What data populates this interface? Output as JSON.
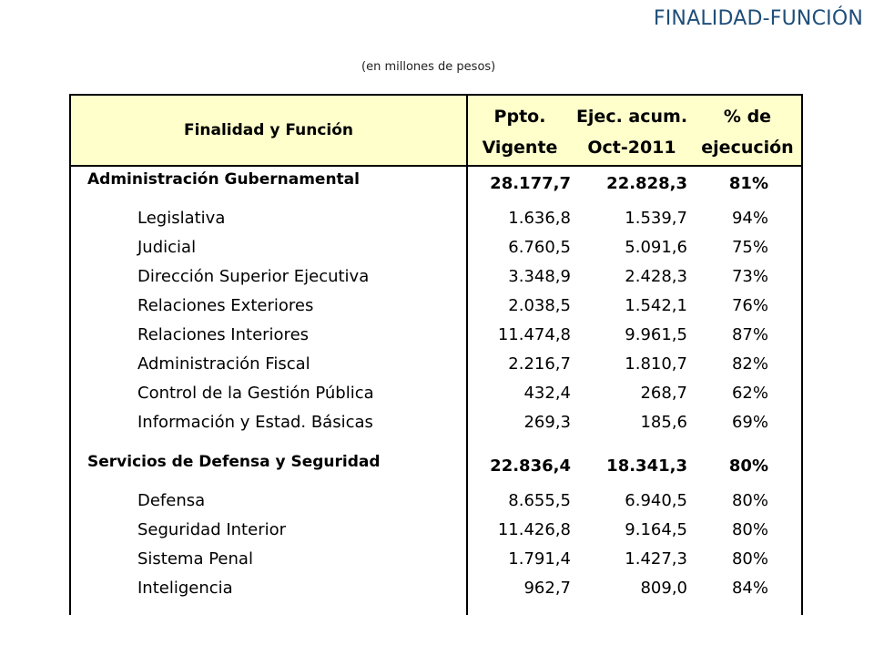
{
  "page_title": "FINALIDAD-FUNCIÓN",
  "subtitle": "(en millones de pesos)",
  "table": {
    "header": {
      "name": "Finalidad y Función",
      "col1": [
        "Ppto.",
        "Vigente"
      ],
      "col2": [
        "Ejec. acum.",
        "Oct-2011"
      ],
      "col3": [
        "% de",
        "ejecución"
      ]
    },
    "rows": [
      {
        "type": "group",
        "name": "Administración Gubernamental",
        "v1": "28.177,7",
        "v2": "22.828,3",
        "v3": "81%"
      },
      {
        "type": "item",
        "name": "Legislativa",
        "v1": "1.636,8",
        "v2": "1.539,7",
        "v3": "94%"
      },
      {
        "type": "item",
        "name": "Judicial",
        "v1": "6.760,5",
        "v2": "5.091,6",
        "v3": "75%"
      },
      {
        "type": "item",
        "name": "Dirección Superior Ejecutiva",
        "v1": "3.348,9",
        "v2": "2.428,3",
        "v3": "73%"
      },
      {
        "type": "item",
        "name": "Relaciones Exteriores",
        "v1": "2.038,5",
        "v2": "1.542,1",
        "v3": "76%"
      },
      {
        "type": "item",
        "name": "Relaciones Interiores",
        "v1": "11.474,8",
        "v2": "9.961,5",
        "v3": "87%"
      },
      {
        "type": "item",
        "name": "Administración Fiscal",
        "v1": "2.216,7",
        "v2": "1.810,7",
        "v3": "82%"
      },
      {
        "type": "item",
        "name": "Control de la Gestión Pública",
        "v1": "432,4",
        "v2": "268,7",
        "v3": "62%"
      },
      {
        "type": "item",
        "name": "Información y Estad. Básicas",
        "v1": "269,3",
        "v2": "185,6",
        "v3": "69%"
      },
      {
        "type": "group",
        "name": "Servicios de Defensa y Seguridad",
        "v1": "22.836,4",
        "v2": "18.341,3",
        "v3": "80%"
      },
      {
        "type": "item",
        "name": "Defensa",
        "v1": "8.655,5",
        "v2": "6.940,5",
        "v3": "80%"
      },
      {
        "type": "item",
        "name": "Seguridad Interior",
        "v1": "11.426,8",
        "v2": "9.164,5",
        "v3": "80%"
      },
      {
        "type": "item",
        "name": "Sistema Penal",
        "v1": "1.791,4",
        "v2": "1.427,3",
        "v3": "80%"
      },
      {
        "type": "item",
        "name": "Inteligencia",
        "v1": "962,7",
        "v2": "809,0",
        "v3": "84%"
      }
    ]
  }
}
